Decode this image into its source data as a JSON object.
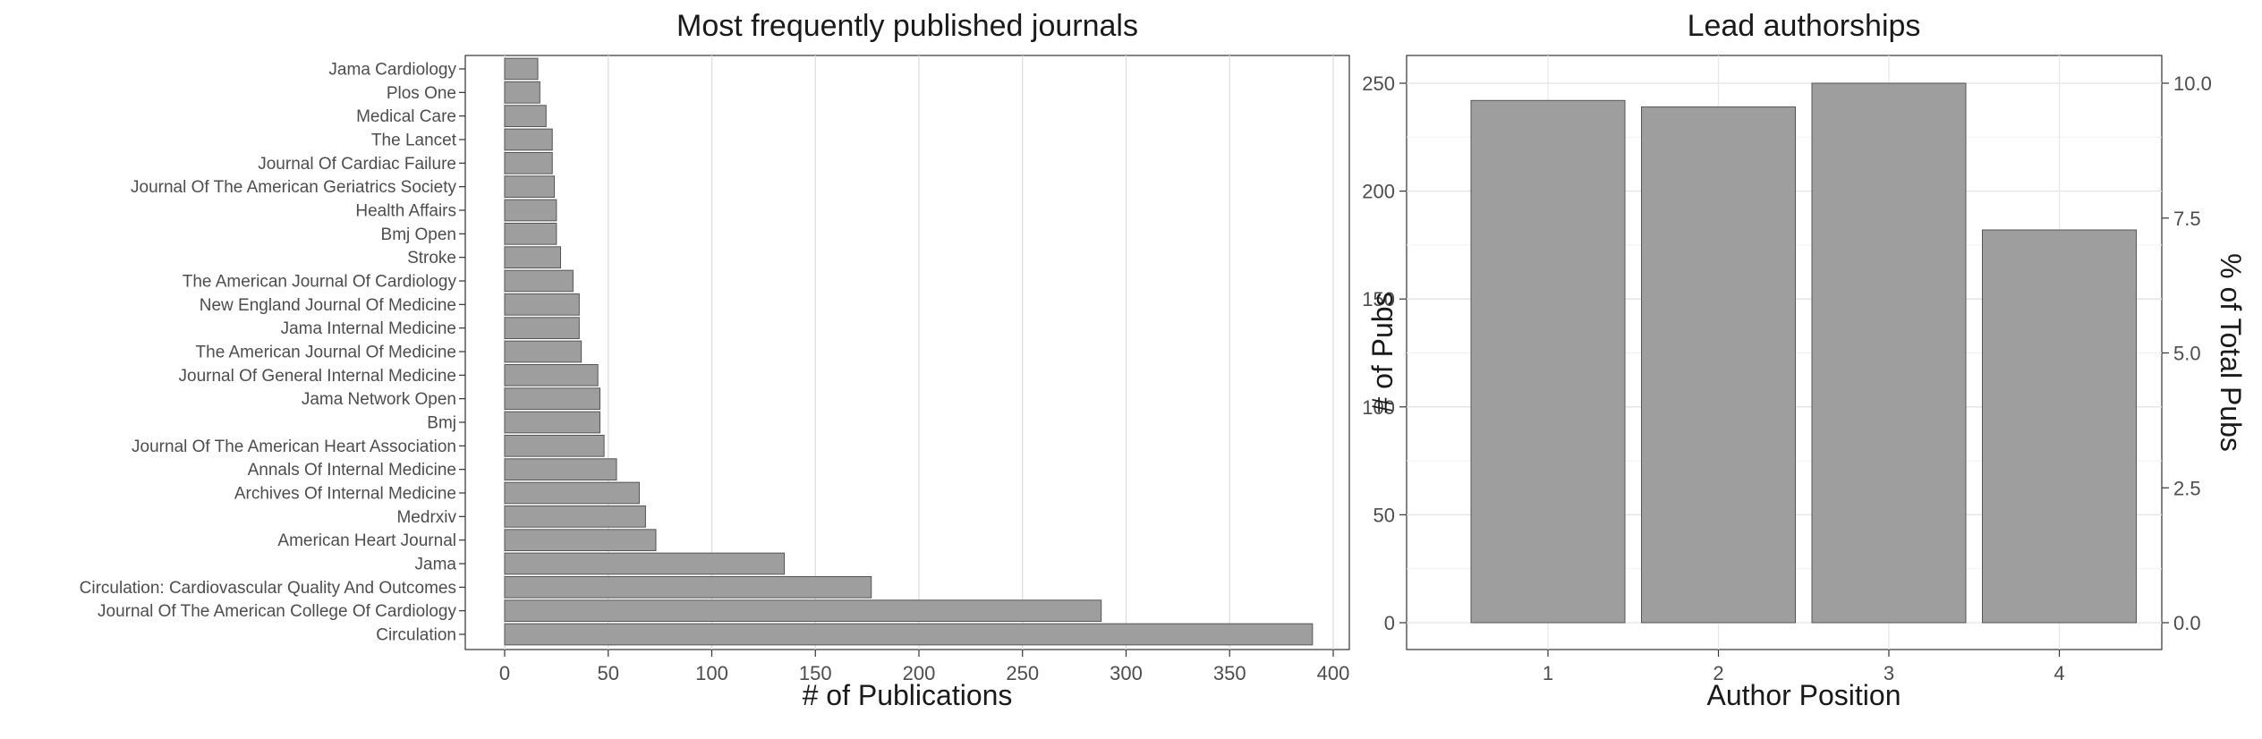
{
  "charts": {
    "left": {
      "chart_data": {
        "type": "bar",
        "orientation": "horizontal",
        "title": "Most frequently published journals",
        "xlabel": "# of Publications",
        "ylabel": "",
        "xlim": [
          0,
          400
        ],
        "xticks": [
          "0",
          "50",
          "100",
          "150",
          "200",
          "250",
          "300",
          "350",
          "400"
        ],
        "grid": true,
        "categories": [
          "Jama Cardiology",
          "Plos One",
          "Medical Care",
          "The Lancet",
          "Journal Of Cardiac Failure",
          "Journal Of The American Geriatrics Society",
          "Health Affairs",
          "Bmj Open",
          "Stroke",
          "The American Journal Of Cardiology",
          "New England Journal Of Medicine",
          "Jama Internal Medicine",
          "The American Journal Of Medicine",
          "Journal Of General Internal Medicine",
          "Jama Network Open",
          "Bmj",
          "Journal Of The American Heart Association",
          "Annals Of Internal Medicine",
          "Archives Of Internal Medicine",
          "Medrxiv",
          "American Heart Journal",
          "Jama",
          "Circulation: Cardiovascular Quality And Outcomes",
          "Journal Of The American College Of Cardiology",
          "Circulation"
        ],
        "values": [
          16,
          17,
          20,
          23,
          23,
          24,
          25,
          25,
          27,
          33,
          36,
          36,
          37,
          45,
          46,
          46,
          48,
          54,
          65,
          68,
          73,
          135,
          177,
          288,
          390
        ],
        "bar_color": "#9e9e9e",
        "bar_edge_color": "#555555"
      }
    },
    "right": {
      "chart_data": {
        "type": "bar",
        "title": "Lead authorships",
        "xlabel": "Author Position",
        "ylabel": "# of Pubs",
        "y2label": "% of Total Pubs",
        "categories": [
          "1",
          "2",
          "3",
          "4"
        ],
        "values": [
          242,
          239,
          250,
          182
        ],
        "ylim": [
          0,
          260
        ],
        "yticks": [
          "0",
          "50",
          "100",
          "150",
          "200",
          "250"
        ],
        "y2lim": [
          0,
          10.4
        ],
        "y2ticks": [
          "0.0",
          "2.5",
          "5.0",
          "7.5",
          "10.0"
        ],
        "grid": true,
        "bar_color": "#9e9e9e",
        "bar_edge_color": "#555555"
      }
    }
  }
}
